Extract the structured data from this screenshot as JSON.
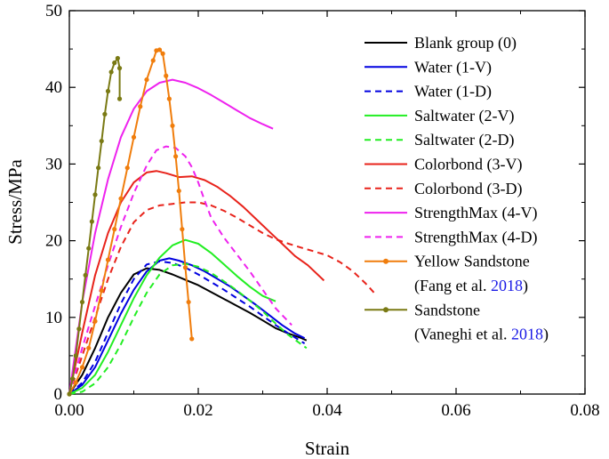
{
  "chart_data": {
    "type": "line",
    "title": "",
    "xlabel": "Strain",
    "ylabel": "Stress/MPa",
    "xlim": [
      0,
      0.08
    ],
    "ylim": [
      0,
      50
    ],
    "x_ticks": [
      0,
      0.02,
      0.04,
      0.06,
      0.08
    ],
    "x_tick_labels": [
      "0.00",
      "0.02",
      "0.04",
      "0.06",
      "0.08"
    ],
    "y_ticks": [
      0,
      10,
      20,
      30,
      40,
      50
    ],
    "y_tick_labels": [
      "0",
      "10",
      "20",
      "30",
      "40",
      "50"
    ],
    "legend_position": "top-right",
    "series": [
      {
        "name": "Blank group (0)",
        "color": "#000000",
        "dash": false,
        "marker": false,
        "points": [
          [
            0,
            0
          ],
          [
            0.002,
            2.5
          ],
          [
            0.004,
            6
          ],
          [
            0.006,
            10
          ],
          [
            0.008,
            13.2
          ],
          [
            0.01,
            15.6
          ],
          [
            0.012,
            16.4
          ],
          [
            0.014,
            16.2
          ],
          [
            0.016,
            15.6
          ],
          [
            0.018,
            14.9
          ],
          [
            0.02,
            14.2
          ],
          [
            0.022,
            13.3
          ],
          [
            0.024,
            12.4
          ],
          [
            0.026,
            11.5
          ],
          [
            0.028,
            10.6
          ],
          [
            0.03,
            9.6
          ],
          [
            0.032,
            8.6
          ],
          [
            0.034,
            7.9
          ],
          [
            0.036,
            7.3
          ],
          [
            0.0368,
            7.0
          ]
        ]
      },
      {
        "name": "Water (1-V)",
        "color": "#0000e0",
        "dash": false,
        "marker": false,
        "points": [
          [
            0,
            0
          ],
          [
            0.002,
            1.2
          ],
          [
            0.004,
            3.5
          ],
          [
            0.006,
            7.0
          ],
          [
            0.008,
            10.5
          ],
          [
            0.01,
            13.6
          ],
          [
            0.012,
            16.0
          ],
          [
            0.014,
            17.4
          ],
          [
            0.0155,
            17.7
          ],
          [
            0.017,
            17.4
          ],
          [
            0.019,
            16.8
          ],
          [
            0.021,
            16.0
          ],
          [
            0.023,
            15.0
          ],
          [
            0.025,
            14.0
          ],
          [
            0.027,
            12.8
          ],
          [
            0.029,
            11.6
          ],
          [
            0.031,
            10.3
          ],
          [
            0.033,
            9.0
          ],
          [
            0.035,
            7.9
          ],
          [
            0.0365,
            7.3
          ]
        ]
      },
      {
        "name": "Water (1-D)",
        "color": "#0000e0",
        "dash": true,
        "marker": false,
        "points": [
          [
            0,
            0
          ],
          [
            0.002,
            1.5
          ],
          [
            0.004,
            4.2
          ],
          [
            0.006,
            8.0
          ],
          [
            0.008,
            11.8
          ],
          [
            0.01,
            15.0
          ],
          [
            0.012,
            16.9
          ],
          [
            0.014,
            17.3
          ],
          [
            0.016,
            17.1
          ],
          [
            0.018,
            16.5
          ],
          [
            0.02,
            15.6
          ],
          [
            0.022,
            14.6
          ],
          [
            0.024,
            13.6
          ],
          [
            0.026,
            12.5
          ],
          [
            0.028,
            11.4
          ],
          [
            0.03,
            10.2
          ],
          [
            0.032,
            9.0
          ],
          [
            0.034,
            7.9
          ],
          [
            0.0365,
            6.6
          ]
        ]
      },
      {
        "name": "Saltwater (2-V)",
        "color": "#22ee22",
        "dash": false,
        "marker": false,
        "points": [
          [
            0,
            0
          ],
          [
            0.002,
            0.8
          ],
          [
            0.004,
            2.5
          ],
          [
            0.006,
            5.5
          ],
          [
            0.008,
            9.0
          ],
          [
            0.01,
            12.5
          ],
          [
            0.012,
            15.5
          ],
          [
            0.014,
            17.8
          ],
          [
            0.016,
            19.4
          ],
          [
            0.018,
            20.1
          ],
          [
            0.02,
            19.6
          ],
          [
            0.022,
            18.4
          ],
          [
            0.024,
            16.9
          ],
          [
            0.026,
            15.4
          ],
          [
            0.028,
            14.0
          ],
          [
            0.03,
            12.8
          ],
          [
            0.032,
            12.1
          ]
        ]
      },
      {
        "name": "Saltwater (2-D)",
        "color": "#22ee22",
        "dash": true,
        "marker": false,
        "points": [
          [
            0,
            0
          ],
          [
            0.002,
            0.3
          ],
          [
            0.004,
            1.4
          ],
          [
            0.006,
            3.5
          ],
          [
            0.008,
            6.5
          ],
          [
            0.01,
            10.0
          ],
          [
            0.012,
            13.2
          ],
          [
            0.014,
            15.6
          ],
          [
            0.016,
            16.8
          ],
          [
            0.018,
            17.0
          ],
          [
            0.02,
            16.6
          ],
          [
            0.022,
            15.8
          ],
          [
            0.024,
            14.7
          ],
          [
            0.026,
            13.5
          ],
          [
            0.028,
            12.2
          ],
          [
            0.03,
            10.8
          ],
          [
            0.032,
            9.2
          ],
          [
            0.034,
            7.7
          ],
          [
            0.0368,
            6.0
          ]
        ]
      },
      {
        "name": "Colorbond (3-V)",
        "color": "#e8231b",
        "dash": false,
        "marker": false,
        "points": [
          [
            0,
            0
          ],
          [
            0.002,
            8
          ],
          [
            0.004,
            15.5
          ],
          [
            0.006,
            21
          ],
          [
            0.008,
            25
          ],
          [
            0.01,
            27.6
          ],
          [
            0.012,
            28.9
          ],
          [
            0.0135,
            29.1
          ],
          [
            0.015,
            28.8
          ],
          [
            0.017,
            28.3
          ],
          [
            0.019,
            28.4
          ],
          [
            0.021,
            27.9
          ],
          [
            0.023,
            27.0
          ],
          [
            0.025,
            25.8
          ],
          [
            0.027,
            24.4
          ],
          [
            0.029,
            22.8
          ],
          [
            0.031,
            21.2
          ],
          [
            0.033,
            19.6
          ],
          [
            0.035,
            18.0
          ],
          [
            0.037,
            16.8
          ],
          [
            0.0395,
            14.8
          ]
        ]
      },
      {
        "name": "Colorbond (3-D)",
        "color": "#e8231b",
        "dash": true,
        "marker": false,
        "points": [
          [
            0,
            0
          ],
          [
            0.002,
            5
          ],
          [
            0.004,
            10
          ],
          [
            0.006,
            15
          ],
          [
            0.008,
            19.2
          ],
          [
            0.01,
            22.4
          ],
          [
            0.012,
            24.0
          ],
          [
            0.014,
            24.6
          ],
          [
            0.016,
            24.8
          ],
          [
            0.018,
            25.0
          ],
          [
            0.02,
            25.0
          ],
          [
            0.022,
            24.6
          ],
          [
            0.024,
            23.9
          ],
          [
            0.026,
            23.0
          ],
          [
            0.028,
            22.0
          ],
          [
            0.03,
            21.0
          ],
          [
            0.032,
            20.2
          ],
          [
            0.034,
            19.6
          ],
          [
            0.036,
            19.1
          ],
          [
            0.038,
            18.6
          ],
          [
            0.04,
            18.1
          ],
          [
            0.042,
            17.2
          ],
          [
            0.044,
            16.0
          ],
          [
            0.046,
            14.4
          ],
          [
            0.0473,
            13.2
          ]
        ]
      },
      {
        "name": "StrengthMax (4-V)",
        "color": "#ee22ee",
        "dash": false,
        "marker": false,
        "points": [
          [
            0,
            0
          ],
          [
            0.002,
            12
          ],
          [
            0.004,
            21
          ],
          [
            0.006,
            28
          ],
          [
            0.008,
            33.5
          ],
          [
            0.01,
            37.2
          ],
          [
            0.012,
            39.5
          ],
          [
            0.014,
            40.6
          ],
          [
            0.016,
            41.0
          ],
          [
            0.018,
            40.6
          ],
          [
            0.02,
            39.9
          ],
          [
            0.022,
            39.0
          ],
          [
            0.024,
            38.0
          ],
          [
            0.026,
            37.0
          ],
          [
            0.028,
            36.0
          ],
          [
            0.03,
            35.2
          ],
          [
            0.0316,
            34.6
          ]
        ]
      },
      {
        "name": "StrengthMax (4-D)",
        "color": "#ee22ee",
        "dash": true,
        "marker": false,
        "points": [
          [
            0,
            0
          ],
          [
            0.002,
            6
          ],
          [
            0.004,
            11.5
          ],
          [
            0.006,
            16.8
          ],
          [
            0.008,
            21.8
          ],
          [
            0.01,
            26.2
          ],
          [
            0.012,
            29.8
          ],
          [
            0.0135,
            31.8
          ],
          [
            0.015,
            32.3
          ],
          [
            0.0165,
            32.1
          ],
          [
            0.018,
            31.0
          ],
          [
            0.019,
            29.6
          ],
          [
            0.02,
            27.6
          ],
          [
            0.021,
            25.2
          ],
          [
            0.022,
            23.0
          ],
          [
            0.024,
            20.4
          ],
          [
            0.026,
            18.2
          ],
          [
            0.028,
            16.0
          ],
          [
            0.03,
            13.6
          ],
          [
            0.032,
            11.2
          ],
          [
            0.0345,
            9.0
          ]
        ]
      },
      {
        "name": "Yellow Sandstone",
        "citation": "(Fang et al. 2018)",
        "color": "#f07d0c",
        "dash": false,
        "marker": true,
        "points": [
          [
            0,
            0
          ],
          [
            0.001,
            1.5
          ],
          [
            0.002,
            3.5
          ],
          [
            0.003,
            6
          ],
          [
            0.004,
            9.5
          ],
          [
            0.005,
            13.5
          ],
          [
            0.006,
            17.5
          ],
          [
            0.007,
            21.5
          ],
          [
            0.008,
            25.5
          ],
          [
            0.009,
            29.5
          ],
          [
            0.01,
            33.5
          ],
          [
            0.011,
            37.5
          ],
          [
            0.012,
            41.0
          ],
          [
            0.013,
            43.5
          ],
          [
            0.0135,
            44.8
          ],
          [
            0.014,
            44.9
          ],
          [
            0.0145,
            44.4
          ],
          [
            0.015,
            41.5
          ],
          [
            0.0155,
            38.5
          ],
          [
            0.016,
            35.0
          ],
          [
            0.0165,
            31.0
          ],
          [
            0.017,
            26.5
          ],
          [
            0.0175,
            21.5
          ],
          [
            0.018,
            16.5
          ],
          [
            0.0185,
            12.0
          ],
          [
            0.019,
            7.2
          ]
        ]
      },
      {
        "name": "Sandstone",
        "citation": "(Vaneghi et al. 2018)",
        "color": "#7a7a14",
        "dash": false,
        "marker": true,
        "points": [
          [
            0,
            0
          ],
          [
            0.0005,
            2
          ],
          [
            0.001,
            5
          ],
          [
            0.0015,
            8.5
          ],
          [
            0.002,
            12
          ],
          [
            0.0025,
            15.5
          ],
          [
            0.003,
            19
          ],
          [
            0.0035,
            22.5
          ],
          [
            0.004,
            26
          ],
          [
            0.0045,
            29.5
          ],
          [
            0.005,
            33
          ],
          [
            0.0055,
            36.5
          ],
          [
            0.006,
            39.5
          ],
          [
            0.0065,
            42
          ],
          [
            0.007,
            43.2
          ],
          [
            0.0075,
            43.8
          ],
          [
            0.0078,
            42.5
          ],
          [
            0.0078,
            38.5
          ]
        ]
      }
    ]
  }
}
